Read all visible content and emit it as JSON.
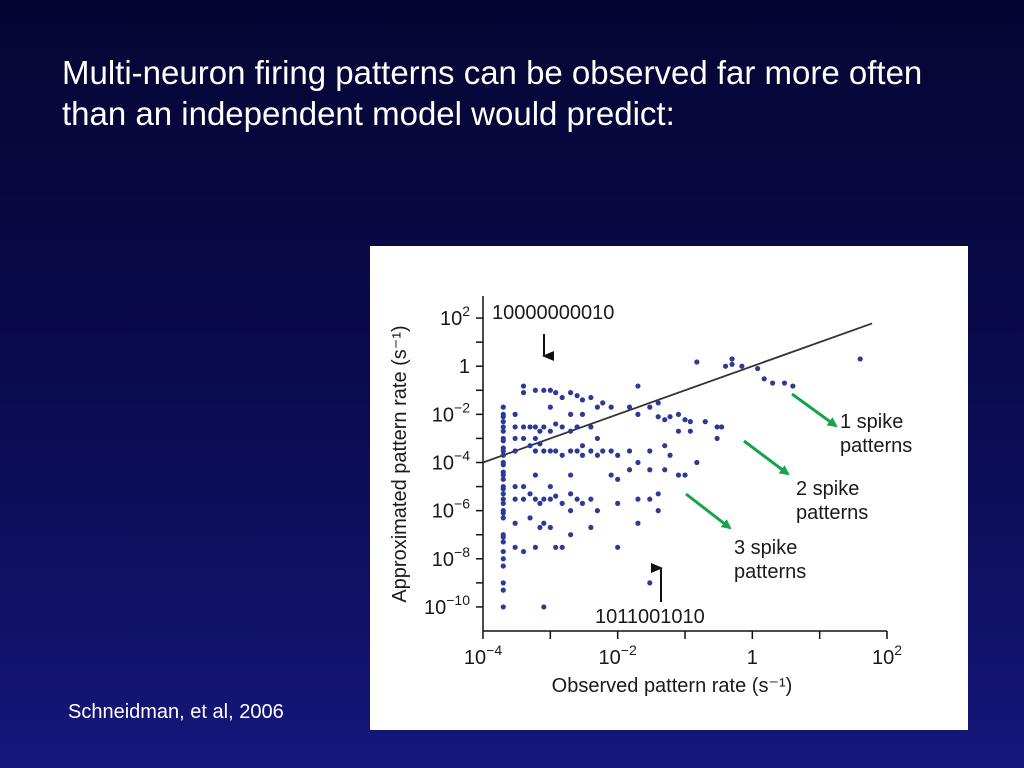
{
  "slide": {
    "title": "Multi-neuron firing patterns can be observed far more often than an independent model would predict:",
    "citation": "Schneidman, et al, 2006"
  },
  "colors": {
    "points": "#2b3a96",
    "arrows_green": "#16a34a",
    "arrows_black": "#111111",
    "identity_line": "#333333"
  },
  "chart_data": {
    "type": "scatter",
    "scale": "log",
    "xlabel": "Observed pattern rate (s⁻¹)",
    "ylabel": "Approximated pattern rate (s⁻¹)",
    "xlim": [
      0.0001,
      100
    ],
    "ylim": [
      1e-11,
      1000
    ],
    "x_ticks": [
      {
        "value": 0.0001,
        "base": "10",
        "exp": "−4"
      },
      {
        "value": 0.01,
        "base": "10",
        "exp": "−2"
      },
      {
        "value": 1,
        "base": "1",
        "exp": ""
      },
      {
        "value": 100,
        "base": "10",
        "exp": "2"
      }
    ],
    "y_ticks": [
      {
        "value": 100,
        "base": "10",
        "exp": "2"
      },
      {
        "value": 1,
        "base": "1",
        "exp": ""
      },
      {
        "value": 0.01,
        "base": "10",
        "exp": "−2"
      },
      {
        "value": 0.0001,
        "base": "10",
        "exp": "−4"
      },
      {
        "value": 1e-06,
        "base": "10",
        "exp": "−6"
      },
      {
        "value": 1e-08,
        "base": "10",
        "exp": "−8"
      },
      {
        "value": 1e-10,
        "base": "10",
        "exp": "−10"
      }
    ],
    "reference_line": {
      "x": [
        0.0001,
        60
      ],
      "y": [
        0.0001,
        60
      ]
    },
    "annotations": [
      {
        "text": "10000000010",
        "x": 0.00032,
        "y": 0.1
      },
      {
        "text": "1011001010",
        "x": 0.028,
        "y": 1e-09
      }
    ],
    "group_labels": [
      {
        "line1": "1 spike",
        "line2": "patterns"
      },
      {
        "line1": "2 spike",
        "line2": "patterns"
      },
      {
        "line1": "3 spike",
        "line2": "patterns"
      }
    ],
    "points": [
      [
        0.0002,
        0.02
      ],
      [
        0.0002,
        0.01
      ],
      [
        0.0002,
        0.005
      ],
      [
        0.0002,
        0.002
      ],
      [
        0.0002,
        0.001
      ],
      [
        0.0002,
        0.0004
      ],
      [
        0.0002,
        0.0002
      ],
      [
        0.0002,
        0.0001
      ],
      [
        0.0002,
        4e-05
      ],
      [
        0.0002,
        2e-05
      ],
      [
        0.0002,
        1e-05
      ],
      [
        0.0002,
        5e-06
      ],
      [
        0.0002,
        2e-06
      ],
      [
        0.0002,
        1e-06
      ],
      [
        0.0002,
        5e-07
      ],
      [
        0.0002,
        1e-07
      ],
      [
        0.0002,
        5e-08
      ],
      [
        0.0002,
        2e-08
      ],
      [
        0.0002,
        1e-08
      ],
      [
        0.0002,
        5e-09
      ],
      [
        0.0002,
        1e-09
      ],
      [
        0.0002,
        5e-10
      ],
      [
        0.0002,
        1e-10
      ],
      [
        0.0002,
        0.008
      ],
      [
        0.0002,
        0.0008
      ],
      [
        0.0002,
        8e-05
      ],
      [
        0.0002,
        8e-06
      ],
      [
        0.0002,
        8e-07
      ],
      [
        0.0002,
        8e-08
      ],
      [
        0.0002,
        0.003
      ],
      [
        0.0002,
        0.0003
      ],
      [
        0.0002,
        3e-05
      ],
      [
        0.0002,
        3e-06
      ],
      [
        0.0003,
        0.01
      ],
      [
        0.0003,
        0.003
      ],
      [
        0.0003,
        0.001
      ],
      [
        0.0003,
        0.0003
      ],
      [
        0.0003,
        1e-05
      ],
      [
        0.0003,
        3e-06
      ],
      [
        0.0003,
        3e-07
      ],
      [
        0.0003,
        3e-08
      ],
      [
        0.0004,
        0.15
      ],
      [
        0.0004,
        0.08
      ],
      [
        0.0004,
        0.003
      ],
      [
        0.0004,
        0.001
      ],
      [
        0.0004,
        1e-05
      ],
      [
        0.0004,
        3e-06
      ],
      [
        0.0004,
        2e-08
      ],
      [
        0.0005,
        0.003
      ],
      [
        0.0005,
        0.0005
      ],
      [
        0.0005,
        5e-06
      ],
      [
        0.0005,
        5e-07
      ],
      [
        0.0006,
        0.1
      ],
      [
        0.0006,
        0.003
      ],
      [
        0.0006,
        0.001
      ],
      [
        0.0006,
        0.0003
      ],
      [
        0.0006,
        3e-05
      ],
      [
        0.0006,
        3e-06
      ],
      [
        0.0006,
        3e-08
      ],
      [
        0.0007,
        0.002
      ],
      [
        0.0007,
        0.0006
      ],
      [
        0.0007,
        2e-06
      ],
      [
        0.0007,
        2e-07
      ],
      [
        0.0008,
        0.1
      ],
      [
        0.0008,
        0.003
      ],
      [
        0.0008,
        0.0003
      ],
      [
        0.0008,
        3e-06
      ],
      [
        0.0008,
        3e-07
      ],
      [
        0.0008,
        1e-10
      ],
      [
        0.001,
        0.1
      ],
      [
        0.001,
        0.02
      ],
      [
        0.001,
        0.002
      ],
      [
        0.001,
        0.0003
      ],
      [
        0.001,
        1e-05
      ],
      [
        0.001,
        3e-06
      ],
      [
        0.001,
        2e-07
      ],
      [
        0.0012,
        0.08
      ],
      [
        0.0012,
        0.004
      ],
      [
        0.0012,
        0.0003
      ],
      [
        0.0012,
        4e-06
      ],
      [
        0.0012,
        3e-08
      ],
      [
        0.0015,
        0.05
      ],
      [
        0.0015,
        0.003
      ],
      [
        0.0015,
        0.0002
      ],
      [
        0.0015,
        2e-06
      ],
      [
        0.0015,
        3e-08
      ],
      [
        0.002,
        0.08
      ],
      [
        0.002,
        0.01
      ],
      [
        0.002,
        0.002
      ],
      [
        0.002,
        0.0003
      ],
      [
        0.002,
        3e-05
      ],
      [
        0.002,
        5e-06
      ],
      [
        0.002,
        1e-06
      ],
      [
        0.002,
        1e-07
      ],
      [
        0.0025,
        0.06
      ],
      [
        0.0025,
        0.003
      ],
      [
        0.0025,
        0.0003
      ],
      [
        0.0025,
        3e-06
      ],
      [
        0.003,
        0.04
      ],
      [
        0.003,
        0.01
      ],
      [
        0.003,
        0.0005
      ],
      [
        0.003,
        0.0002
      ],
      [
        0.003,
        2e-06
      ],
      [
        0.004,
        0.05
      ],
      [
        0.004,
        0.003
      ],
      [
        0.004,
        0.0003
      ],
      [
        0.004,
        3e-06
      ],
      [
        0.004,
        2e-07
      ],
      [
        0.005,
        0.02
      ],
      [
        0.005,
        0.001
      ],
      [
        0.005,
        0.0002
      ],
      [
        0.005,
        1e-06
      ],
      [
        0.006,
        0.03
      ],
      [
        0.006,
        0.0003
      ],
      [
        0.008,
        0.02
      ],
      [
        0.008,
        0.0003
      ],
      [
        0.008,
        3e-05
      ],
      [
        0.01,
        0.0002
      ],
      [
        0.01,
        2e-05
      ],
      [
        0.01,
        2e-06
      ],
      [
        0.01,
        3e-08
      ],
      [
        0.015,
        0.02
      ],
      [
        0.015,
        0.0003
      ],
      [
        0.015,
        5e-05
      ],
      [
        0.02,
        0.01
      ],
      [
        0.02,
        0.15
      ],
      [
        0.02,
        0.0001
      ],
      [
        0.02,
        3e-06
      ],
      [
        0.02,
        3e-07
      ],
      [
        0.03,
        0.02
      ],
      [
        0.03,
        0.0003
      ],
      [
        0.03,
        5e-05
      ],
      [
        0.03,
        3e-06
      ],
      [
        0.03,
        1e-09
      ],
      [
        0.04,
        0.03
      ],
      [
        0.04,
        0.008
      ],
      [
        0.04,
        5e-06
      ],
      [
        0.04,
        1e-06
      ],
      [
        0.05,
        0.006
      ],
      [
        0.05,
        0.0005
      ],
      [
        0.05,
        5e-05
      ],
      [
        0.06,
        0.008
      ],
      [
        0.06,
        0.0002
      ],
      [
        0.08,
        0.01
      ],
      [
        0.08,
        0.002
      ],
      [
        0.08,
        3e-05
      ],
      [
        0.1,
        0.006
      ],
      [
        0.1,
        3e-05
      ],
      [
        0.12,
        0.005
      ],
      [
        0.12,
        0.002
      ],
      [
        0.15,
        1.5
      ],
      [
        0.15,
        0.0001
      ],
      [
        0.2,
        0.005
      ],
      [
        0.3,
        0.003
      ],
      [
        0.3,
        0.001
      ],
      [
        0.35,
        0.003
      ],
      [
        0.4,
        1
      ],
      [
        0.5,
        1.2
      ],
      [
        0.5,
        2
      ],
      [
        0.7,
        1
      ],
      [
        1.2,
        0.8
      ],
      [
        1.5,
        0.3
      ],
      [
        2,
        0.2
      ],
      [
        3,
        0.2
      ],
      [
        4,
        0.15
      ],
      [
        40,
        2
      ]
    ]
  }
}
